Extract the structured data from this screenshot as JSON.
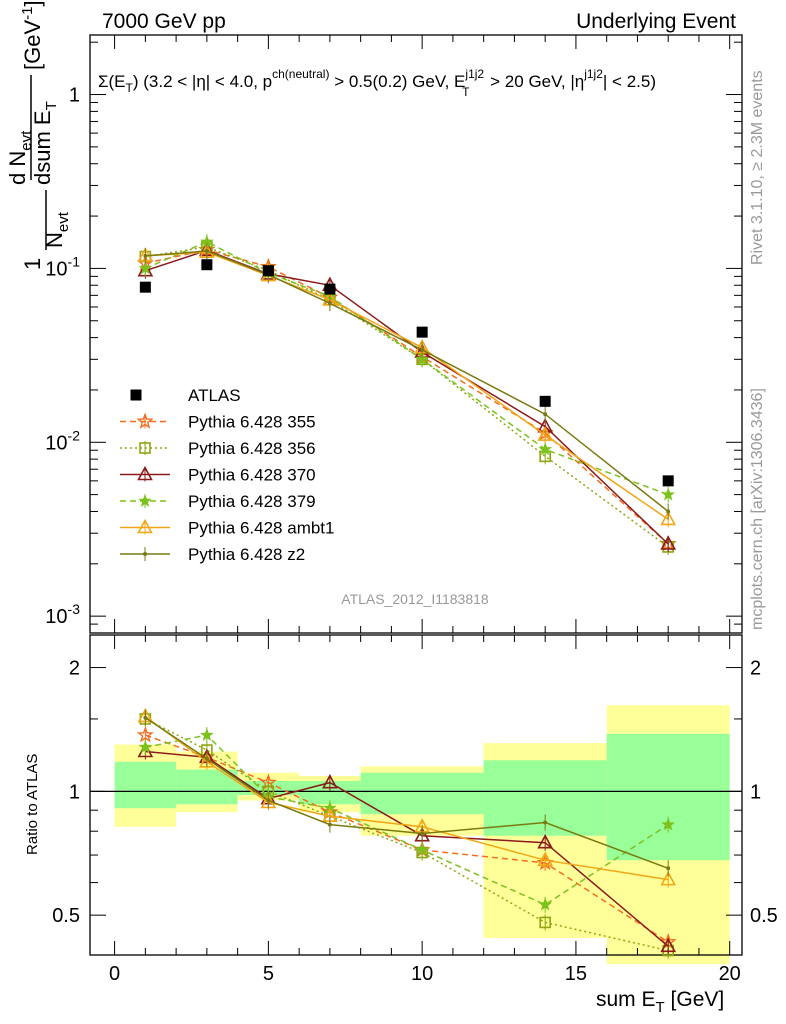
{
  "header": {
    "left": "7000 GeV pp",
    "right": "Underlying Event"
  },
  "side_labels": {
    "top": "Rivet 3.1.10, ≥ 2.3M events",
    "bottom": "mcplots.cern.ch [arXiv:1306.3436]"
  },
  "analysis_label": "ATLAS_2012_I1183818",
  "colors": {
    "ATLAS": "#000000",
    "355": "#f46d1f",
    "356": "#8ea60e",
    "370": "#8b1a1a",
    "379": "#7bc21c",
    "ambt1": "#f2a614",
    "z2": "#7a7a12",
    "band_inner": "#99ff99",
    "band_outer": "#ffff99"
  },
  "chart_data": [
    {
      "type": "line",
      "panel": "main",
      "title": "Σ(E_T) (3.2 < |η| < 4.0, p^ch(neutral) > 0.5(0.2) GeV, E_T^j1j2 > 20 GeV, |η^j1j2| < 2.5)",
      "ylabel": "1/N_evt dN_evt/dsum E_T [GeV^-1]",
      "yscale": "log",
      "ylim": [
        0.0008,
        2.2
      ],
      "xlim": [
        -0.8,
        20.4
      ],
      "y_ticks": [
        "10^-3",
        "10^-2",
        "10^-1",
        "1"
      ],
      "legend_position": "middle-left",
      "x": [
        1,
        3,
        5,
        7,
        10,
        14,
        18
      ],
      "series": [
        {
          "name": "ATLAS",
          "key": "ATLAS",
          "style": "data",
          "values": [
            0.078,
            0.105,
            0.097,
            0.076,
            0.043,
            0.0172,
            0.006
          ]
        },
        {
          "name": "Pythia 6.428 355",
          "key": "355",
          "style": "dashed",
          "marker": "star-open",
          "values": [
            0.107,
            0.128,
            0.102,
            0.068,
            0.031,
            0.0113,
            0.0026
          ]
        },
        {
          "name": "Pythia 6.428 356",
          "key": "356",
          "style": "dotted",
          "marker": "square-open",
          "values": [
            0.117,
            0.133,
            0.097,
            0.066,
            0.03,
            0.0083,
            0.0025
          ]
        },
        {
          "name": "Pythia 6.428 370",
          "key": "370",
          "style": "solid",
          "marker": "triangle-open",
          "values": [
            0.097,
            0.127,
            0.093,
            0.08,
            0.033,
            0.0123,
            0.0026
          ]
        },
        {
          "name": "Pythia 6.428 379",
          "key": "379",
          "style": "dashed",
          "marker": "star-filled",
          "values": [
            0.1,
            0.142,
            0.094,
            0.069,
            0.03,
            0.0091,
            0.005
          ]
        },
        {
          "name": "Pythia 6.428 ambt1",
          "key": "ambt1",
          "style": "solid",
          "marker": "triangle-open",
          "values": [
            0.118,
            0.124,
            0.091,
            0.066,
            0.035,
            0.011,
            0.0036
          ]
        },
        {
          "name": "Pythia 6.428 z2",
          "key": "z2",
          "style": "solid",
          "marker": "dot",
          "values": [
            0.118,
            0.126,
            0.092,
            0.063,
            0.034,
            0.0145,
            0.004
          ]
        }
      ]
    },
    {
      "type": "line",
      "panel": "ratio",
      "xlabel": "sum E_T [GeV]",
      "ylabel": "Ratio to ATLAS",
      "yscale": "log",
      "ylim": [
        0.4,
        2.4
      ],
      "xlim": [
        -0.8,
        20.4
      ],
      "y_ticks": [
        "0.5",
        "1",
        "2"
      ],
      "x_ticks": [
        "0",
        "5",
        "10",
        "15",
        "20"
      ],
      "bands": [
        {
          "x0": 0,
          "x1": 2,
          "inner": [
            0.91,
            1.18
          ],
          "outer": [
            0.82,
            1.3
          ]
        },
        {
          "x0": 2,
          "x1": 4,
          "inner": [
            0.93,
            1.13
          ],
          "outer": [
            0.89,
            1.25
          ]
        },
        {
          "x0": 4,
          "x1": 6,
          "inner": [
            0.98,
            1.06
          ],
          "outer": [
            0.95,
            1.11
          ]
        },
        {
          "x0": 6,
          "x1": 8,
          "inner": [
            0.93,
            1.06
          ],
          "outer": [
            0.89,
            1.09
          ]
        },
        {
          "x0": 8,
          "x1": 12,
          "inner": [
            0.88,
            1.11
          ],
          "outer": [
            0.78,
            1.15
          ]
        },
        {
          "x0": 12,
          "x1": 16,
          "inner": [
            0.78,
            1.19
          ],
          "outer": [
            0.44,
            1.31
          ]
        },
        {
          "x0": 16,
          "x1": 20,
          "inner": [
            0.68,
            1.38
          ],
          "outer": [
            0.38,
            1.62
          ]
        }
      ],
      "x": [
        1,
        3,
        5,
        7,
        10,
        14,
        18
      ],
      "series": [
        {
          "name": "Pythia 6.428 355",
          "key": "355",
          "style": "dashed",
          "marker": "star-open",
          "values": [
            1.37,
            1.21,
            1.05,
            0.89,
            0.72,
            0.67,
            0.43
          ]
        },
        {
          "name": "Pythia 6.428 356",
          "key": "356",
          "style": "dotted",
          "marker": "square-open",
          "values": [
            1.5,
            1.26,
            1.0,
            0.87,
            0.71,
            0.48,
            0.41
          ]
        },
        {
          "name": "Pythia 6.428 370",
          "key": "370",
          "style": "solid",
          "marker": "triangle-open",
          "values": [
            1.25,
            1.21,
            0.96,
            1.05,
            0.78,
            0.75,
            0.42
          ]
        },
        {
          "name": "Pythia 6.428 379",
          "key": "379",
          "style": "dashed",
          "marker": "star-filled",
          "values": [
            1.28,
            1.37,
            0.97,
            0.91,
            0.72,
            0.53,
            0.83
          ]
        },
        {
          "name": "Pythia 6.428 ambt1",
          "key": "ambt1",
          "style": "solid",
          "marker": "triangle-open",
          "values": [
            1.52,
            1.18,
            0.94,
            0.87,
            0.82,
            0.68,
            0.61
          ]
        },
        {
          "name": "Pythia 6.428 z2",
          "key": "z2",
          "style": "solid",
          "marker": "dot",
          "values": [
            1.51,
            1.2,
            0.95,
            0.83,
            0.79,
            0.84,
            0.65
          ]
        }
      ]
    }
  ]
}
